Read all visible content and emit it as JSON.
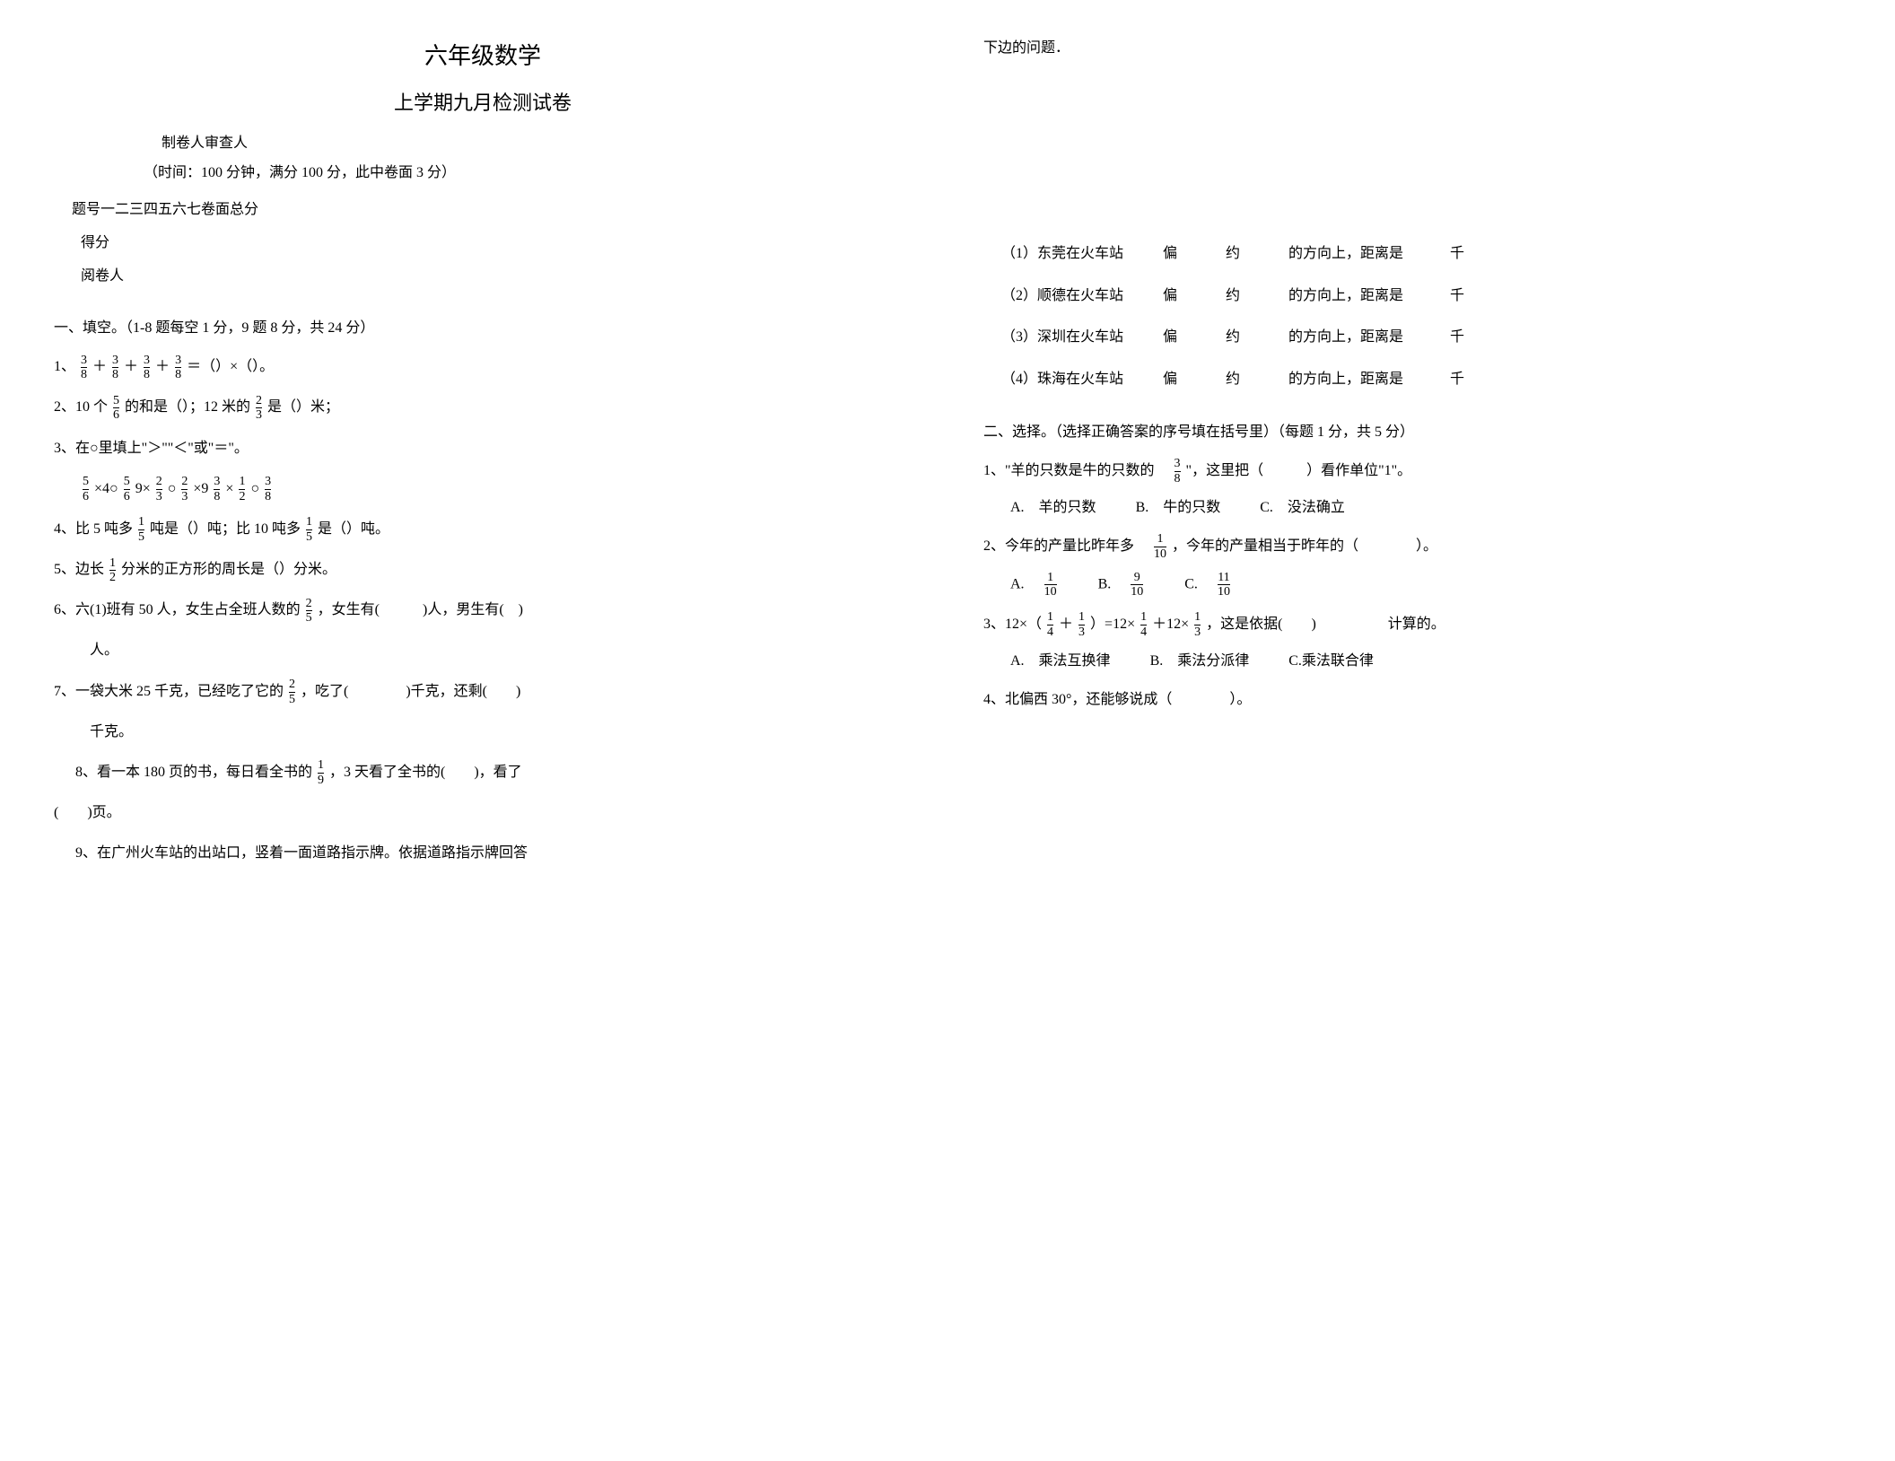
{
  "header": {
    "title_main": "六年级数学",
    "title_sub": "上学期九月检测试卷",
    "meta_author": "制卷人审查人",
    "meta_time": "（时间：100 分钟，满分 100 分，此中卷面 3 分）",
    "score_header": "题号一二三四五六七卷面总分",
    "score_line1": "得分",
    "score_line2": "阅卷人"
  },
  "section1": {
    "title": "一、填空。（1-8 题每空 1 分，9 题 8 分，共 24 分）",
    "q1_prefix": "1、",
    "q1_mid": "＝（）×（）。",
    "q1_frac_num": "3",
    "q1_frac_den": "8",
    "q2_prefix": "2、10 个 ",
    "q2_frac1_num": "5",
    "q2_frac1_den": "6",
    "q2_mid1": " 的和是（）；12 米的 ",
    "q2_frac2_num": "2",
    "q2_frac2_den": "3",
    "q2_mid2": " 是（）米；",
    "q3": "3、在○里填上\"＞\"\"＜\"或\"＝\"。",
    "q3_expr_prefix": "",
    "q3_f1n": "5",
    "q3_f1d": "6",
    "q3_t1": "×4○",
    "q3_f2n": "5",
    "q3_f2d": "6",
    "q3_t2": "9×",
    "q3_f3n": "2",
    "q3_f3d": "3",
    "q3_t3": "○",
    "q3_f4n": "2",
    "q3_f4d": "3",
    "q3_t4": "×9",
    "q3_f5n": "3",
    "q3_f5d": "8",
    "q3_t5": "×",
    "q3_f6n": "1",
    "q3_f6d": "2",
    "q3_t6": "○",
    "q3_f7n": "3",
    "q3_f7d": "8",
    "q4_prefix": "4、比 5 吨多 ",
    "q4_f1n": "1",
    "q4_f1d": "5",
    "q4_mid1": " 吨是（）吨；比 10 吨多 ",
    "q4_f2n": "1",
    "q4_f2d": "5",
    "q4_mid2": " 是（）吨。",
    "q5_prefix": "5、边长 ",
    "q5_fn": "1",
    "q5_fd": "2",
    "q5_suffix": " 分米的正方形的周长是（）分米。",
    "q6_prefix": "6、六(1)班有 50 人，女生占全班人数的 ",
    "q6_fn": "2",
    "q6_fd": "5",
    "q6_mid": "，女生有(　　　)人，男生有(　)",
    "q6_line2": "人。",
    "q7_prefix": "7、一袋大米 25 千克，已经吃了它的 ",
    "q7_fn": "2",
    "q7_fd": "5",
    "q7_mid": "，吃了(　　　　)千克，还剩(　　)",
    "q7_line2": "千克。",
    "q8_prefix": "8、看一本 180 页的书，每日看全书的 ",
    "q8_fn": "1",
    "q8_fd": "9",
    "q8_mid": "，3 天看了全书的(　　)，看了",
    "q8_line2": "(　　)页。",
    "q9": "9、在广州火车站的出站口，竖着一面道路指示牌。依据道路指示牌回答"
  },
  "col2_top": "下边的问题．",
  "fill_rows": [
    {
      "label": "（1）东莞在火车站",
      "a": "偏",
      "b": "约",
      "c": "的方向上，距离是",
      "d": "千"
    },
    {
      "label": "（2）顺德在火车站",
      "a": "偏",
      "b": "约",
      "c": "的方向上，距离是",
      "d": "千"
    },
    {
      "label": "（3）深圳在火车站",
      "a": "偏",
      "b": "约",
      "c": "的方向上，距离是",
      "d": "千"
    },
    {
      "label": "（4）珠海在火车站",
      "a": "偏",
      "b": "约",
      "c": "的方向上，距离是",
      "d": "千"
    }
  ],
  "section2": {
    "title": "二、选择。（选择正确答案的序号填在括号里）（每题 1 分，共 5 分）",
    "q1_prefix": "1、\"羊的只数是牛的只数的　",
    "q1_fn": "3",
    "q1_fd": "8",
    "q1_suffix": "\"，这里把（　　　）看作单位\"1\"。",
    "q1_optA": "A.　羊的只数",
    "q1_optB": "B.　牛的只数",
    "q1_optC": "C.　没法确立",
    "q2_prefix": "2、今年的产量比昨年多　",
    "q2_fn": "1",
    "q2_fd": "10",
    "q2_suffix": "，今年的产量相当于昨年的（　　　　）。",
    "q2_optA_l": "A.　",
    "q2_optA_n": "1",
    "q2_optA_d": "10",
    "q2_optB_l": "B.　",
    "q2_optB_n": "9",
    "q2_optB_d": "10",
    "q2_optC_l": "C.　",
    "q2_optC_n": "11",
    "q2_optC_d": "10",
    "q3_prefix": "3、12×（",
    "q3_f1n": "1",
    "q3_f1d": "4",
    "q3_p1": "＋",
    "q3_f2n": "1",
    "q3_f2d": "3",
    "q3_p2": "）=12×",
    "q3_f3n": "1",
    "q3_f3d": "4",
    "q3_p3": "＋12×",
    "q3_f4n": "1",
    "q3_f4d": "3",
    "q3_suffix": "，这是依据(　　)　　　　　计算的。",
    "q3_optA": "A.　乘法互换律",
    "q3_optB": "B.　乘法分派律",
    "q3_optC": "C.乘法联合律",
    "q4": "4、北偏西 30°，还能够说成（　　　　）。"
  }
}
